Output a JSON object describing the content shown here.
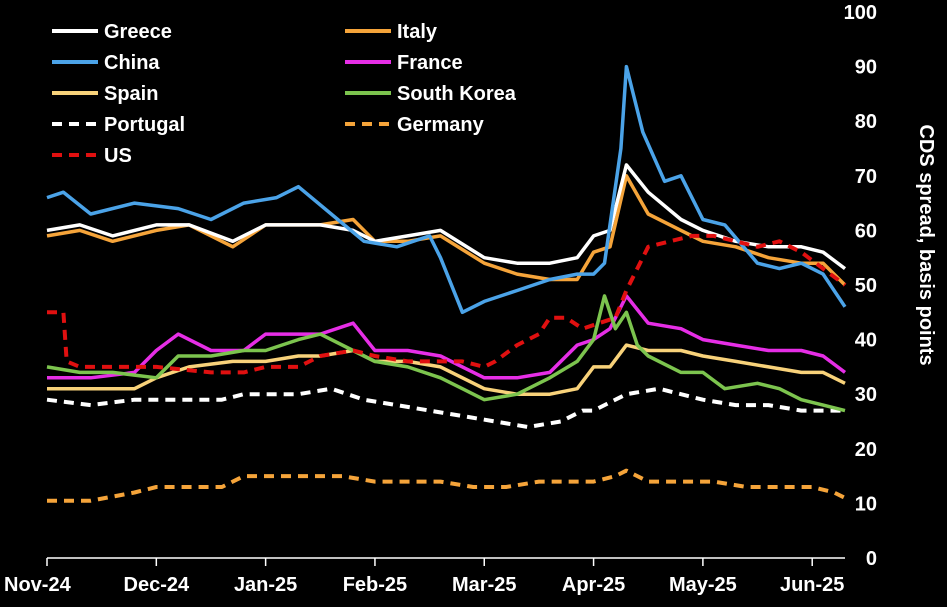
{
  "chart_data": {
    "type": "line",
    "title": "",
    "xlabel": "",
    "ylabel": "CDS spread, basis points",
    "ylim": [
      0,
      100
    ],
    "y_ticks": [
      "0",
      "10",
      "20",
      "30",
      "40",
      "50",
      "60",
      "70",
      "80",
      "90",
      "100"
    ],
    "x_ticks": [
      "Nov-24",
      "Dec-24",
      "Jan-25",
      "Feb-25",
      "Mar-25",
      "Apr-25",
      "May-25",
      "Jun-25"
    ],
    "x_range_months": [
      0,
      7.3
    ],
    "legend_position": "top-left",
    "series": [
      {
        "name": "Greece",
        "color": "#ffffff",
        "dash": false,
        "x": [
          0,
          0.3,
          0.6,
          1,
          1.3,
          1.7,
          2,
          2.3,
          2.5,
          2.8,
          3,
          3.3,
          3.6,
          4,
          4.3,
          4.6,
          4.85,
          5,
          5.15,
          5.3,
          5.5,
          5.8,
          6,
          6.3,
          6.6,
          6.9,
          7.1,
          7.3
        ],
        "y": [
          60,
          61,
          59,
          61,
          61,
          58,
          61,
          61,
          61,
          60,
          58,
          59,
          60,
          55,
          54,
          54,
          55,
          59,
          60,
          72,
          67,
          62,
          60,
          58,
          57,
          57,
          56,
          53
        ]
      },
      {
        "name": "Italy",
        "color": "#f5a43a",
        "dash": false,
        "x": [
          0,
          0.3,
          0.6,
          1,
          1.3,
          1.7,
          2,
          2.3,
          2.5,
          2.8,
          3,
          3.3,
          3.6,
          4,
          4.3,
          4.6,
          4.85,
          5,
          5.15,
          5.3,
          5.5,
          5.8,
          6,
          6.3,
          6.6,
          6.9,
          7.1,
          7.3
        ],
        "y": [
          59,
          60,
          58,
          60,
          61,
          57,
          61,
          61,
          61,
          62,
          58,
          58,
          59,
          54,
          52,
          51,
          51,
          56,
          57,
          70,
          63,
          60,
          58,
          57,
          55,
          54,
          54,
          50
        ]
      },
      {
        "name": "China",
        "color": "#4ba3e8",
        "dash": false,
        "x": [
          0,
          0.15,
          0.4,
          0.8,
          1.2,
          1.5,
          1.8,
          2.1,
          2.3,
          2.6,
          2.9,
          3.2,
          3.5,
          3.6,
          3.8,
          4,
          4.3,
          4.6,
          4.85,
          5,
          5.1,
          5.25,
          5.3,
          5.45,
          5.65,
          5.8,
          6,
          6.2,
          6.5,
          6.7,
          6.9,
          7.1,
          7.3
        ],
        "y": [
          66,
          67,
          63,
          65,
          64,
          62,
          65,
          66,
          68,
          63,
          58,
          57,
          59,
          55,
          45,
          47,
          49,
          51,
          52,
          52,
          54,
          75,
          90,
          78,
          69,
          70,
          62,
          61,
          54,
          53,
          54,
          52,
          46
        ]
      },
      {
        "name": "France",
        "color": "#e62ee6",
        "dash": false,
        "x": [
          0,
          0.4,
          0.8,
          1,
          1.2,
          1.5,
          1.8,
          2,
          2.3,
          2.5,
          2.8,
          3,
          3.3,
          3.6,
          3.8,
          4,
          4.3,
          4.6,
          4.85,
          5,
          5.15,
          5.3,
          5.5,
          5.8,
          6,
          6.3,
          6.6,
          6.9,
          7.1,
          7.3
        ],
        "y": [
          33,
          33,
          34,
          38,
          41,
          38,
          38,
          41,
          41,
          41,
          43,
          38,
          38,
          37,
          35,
          33,
          33,
          34,
          39,
          40,
          42,
          48,
          43,
          42,
          40,
          39,
          38,
          38,
          37,
          34
        ]
      },
      {
        "name": "Spain",
        "color": "#f8d27a",
        "dash": false,
        "x": [
          0,
          0.4,
          0.8,
          1,
          1.3,
          1.7,
          2,
          2.3,
          2.5,
          2.8,
          3,
          3.3,
          3.6,
          4,
          4.3,
          4.6,
          4.85,
          5,
          5.15,
          5.3,
          5.5,
          5.8,
          6,
          6.3,
          6.6,
          6.9,
          7.1,
          7.3
        ],
        "y": [
          31,
          31,
          31,
          33,
          35,
          36,
          36,
          37,
          37,
          38,
          36,
          36,
          35,
          31,
          30,
          30,
          31,
          35,
          35,
          39,
          38,
          38,
          37,
          36,
          35,
          34,
          34,
          32
        ]
      },
      {
        "name": "South Korea",
        "color": "#7cc44e",
        "dash": false,
        "x": [
          0,
          0.3,
          0.6,
          1,
          1.2,
          1.5,
          1.8,
          2,
          2.3,
          2.5,
          2.8,
          3,
          3.3,
          3.6,
          3.8,
          4,
          4.3,
          4.6,
          4.85,
          5,
          5.1,
          5.2,
          5.3,
          5.4,
          5.5,
          5.8,
          6,
          6.2,
          6.5,
          6.7,
          6.9,
          7.1,
          7.3
        ],
        "y": [
          35,
          34,
          34,
          33,
          37,
          37,
          38,
          38,
          40,
          41,
          38,
          36,
          35,
          33,
          31,
          29,
          30,
          33,
          36,
          40,
          48,
          42,
          45,
          39,
          37,
          34,
          34,
          31,
          32,
          31,
          29,
          28,
          27
        ]
      },
      {
        "name": "Portugal",
        "color": "#ffffff",
        "dash": true,
        "x": [
          0,
          0.4,
          0.8,
          1.2,
          1.6,
          1.8,
          2,
          2.3,
          2.6,
          2.9,
          3.2,
          3.5,
          3.8,
          4.1,
          4.4,
          4.7,
          4.9,
          5,
          5.1,
          5.3,
          5.6,
          5.8,
          6,
          6.3,
          6.6,
          6.9,
          7.1,
          7.3
        ],
        "y": [
          29,
          28,
          29,
          29,
          29,
          30,
          30,
          30,
          31,
          29,
          28,
          27,
          26,
          25,
          24,
          25,
          27,
          27,
          28,
          30,
          31,
          30,
          29,
          28,
          28,
          27,
          27,
          27
        ]
      },
      {
        "name": "Germany",
        "color": "#f5a43a",
        "dash": true,
        "x": [
          0,
          0.4,
          0.8,
          1,
          1.3,
          1.6,
          1.8,
          2.1,
          2.4,
          2.7,
          3,
          3.3,
          3.6,
          3.9,
          4.2,
          4.5,
          4.8,
          5,
          5.2,
          5.3,
          5.5,
          5.8,
          6.1,
          6.4,
          6.7,
          7,
          7.2,
          7.3
        ],
        "y": [
          10.5,
          10.5,
          12,
          13,
          13,
          13,
          15,
          15,
          15,
          15,
          14,
          14,
          14,
          13,
          13,
          14,
          14,
          14,
          15,
          16,
          14,
          14,
          14,
          13,
          13,
          13,
          12,
          11
        ]
      },
      {
        "name": "US",
        "color": "#e01010",
        "dash": true,
        "x": [
          0,
          0.15,
          0.18,
          0.3,
          0.6,
          1,
          1.5,
          1.8,
          2,
          2.3,
          2.5,
          2.8,
          3,
          3.3,
          3.6,
          3.8,
          4,
          4.1,
          4.3,
          4.5,
          4.6,
          4.75,
          4.9,
          5.05,
          5.2,
          5.3,
          5.4,
          5.5,
          5.7,
          5.9,
          6.1,
          6.3,
          6.5,
          6.7,
          6.9,
          7.1,
          7.3
        ],
        "y": [
          45,
          45,
          36,
          35,
          35,
          35,
          34,
          34,
          35,
          35,
          37,
          38,
          37,
          36,
          36,
          36,
          35,
          36,
          39,
          41,
          44,
          44,
          42,
          43,
          44,
          49,
          53,
          57,
          58,
          59,
          59,
          58,
          57,
          58,
          56,
          53,
          50
        ]
      }
    ]
  }
}
